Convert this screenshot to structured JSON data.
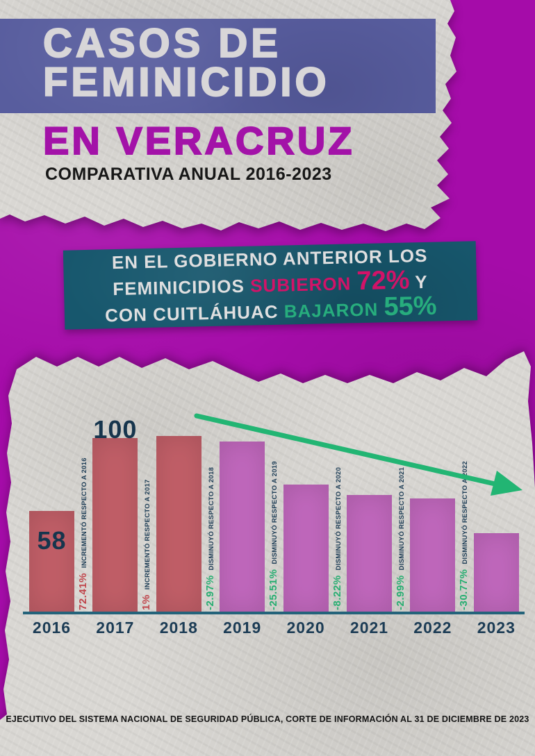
{
  "poster": {
    "title_line1": "CASOS DE",
    "title_line2": "FEMINICIDIO",
    "location": "EN VERACRUZ",
    "subtitle": "COMPARATIVA ANUAL 2016-2023",
    "source_note": "EJECUTIVO DEL SISTEMA NACIONAL DE SEGURIDAD PÚBLICA, CORTE DE INFORMACIÓN AL 31 DE DICIEMBRE DE 2023"
  },
  "banner": {
    "line1": "EN EL GOBIERNO ANTERIOR LOS",
    "line2": [
      {
        "text": "FEMINICIDIOS ",
        "style": "white"
      },
      {
        "text": "SUBIERON ",
        "style": "pink"
      },
      {
        "text": "72%",
        "style": "pink-big"
      },
      {
        "text": " Y",
        "style": "white"
      }
    ],
    "line3": [
      {
        "text": "CON CUITLÁHUAC ",
        "style": "white"
      },
      {
        "text": "BAJARON ",
        "style": "green"
      },
      {
        "text": "55%",
        "style": "green-big"
      }
    ]
  },
  "colors": {
    "background_magenta": "#a50ca9",
    "paper_gray": "#d9d7d3",
    "title_block_blue": "#585d9e",
    "title_text": "#d8d6d8",
    "location_magenta": "#a312a8",
    "banner_teal": "#17576d",
    "banner_pink": "#d11368",
    "banner_green": "#27ad7d",
    "bar_red": "#c25f68",
    "bar_purple": "#c168bd",
    "axis_teal": "#24637a",
    "label_navy": "#1c3c55",
    "increase_red": "#c0454b",
    "decrease_green": "#27ae71",
    "trend_arrow_green": "#22b573"
  },
  "chart_data": {
    "type": "bar",
    "title": "CASOS DE FEMINICIDIO EN VERACRUZ, COMPARATIVA ANUAL 2016-2023",
    "categories": [
      "2016",
      "2017",
      "2018",
      "2019",
      "2020",
      "2021",
      "2022",
      "2023"
    ],
    "values": [
      58,
      100,
      101,
      98,
      73,
      67,
      65,
      45
    ],
    "bar_colors": [
      "#c25f68",
      "#c25f68",
      "#c25f68",
      "#c168bd",
      "#c168bd",
      "#c168bd",
      "#c168bd",
      "#c168bd"
    ],
    "value_labels_shown": [
      {
        "category": "2016",
        "label": "58",
        "placement": "inside-top"
      },
      {
        "category": "2017",
        "label": "100",
        "placement": "above"
      }
    ],
    "annotations": [
      {
        "between": "2016-2017",
        "pct": "72.41%",
        "desc": "INCREMENTÓ RESPECTO A 2016",
        "trend": "up"
      },
      {
        "between": "2017-2018",
        "pct": "1%",
        "desc": "INCREMENTÓ RESPECTO A 2017",
        "trend": "up"
      },
      {
        "between": "2018-2019",
        "pct": "-2.97%",
        "desc": "DISMINUYÓ RESPECTO A 2018",
        "trend": "down"
      },
      {
        "between": "2019-2020",
        "pct": "-25.51%",
        "desc": "DISMINUYÓ RESPECTO A 2019",
        "trend": "down"
      },
      {
        "between": "2020-2021",
        "pct": "-8.22%",
        "desc": "DISMINUYÓ RESPECTO A 2020",
        "trend": "down"
      },
      {
        "between": "2021-2022",
        "pct": "-2.99%",
        "desc": "DISMINUYÓ RESPECTO A 2021",
        "trend": "down"
      },
      {
        "between": "2022-2023",
        "pct": "-30.77%",
        "desc": "DISMINUYÓ RESPECTO A 2022",
        "trend": "down"
      }
    ],
    "xlabel": "",
    "ylabel": "",
    "ylim": [
      0,
      105
    ],
    "grid": false,
    "legend": false,
    "trend_arrow": {
      "direction": "down-right",
      "color": "#22b573"
    }
  }
}
